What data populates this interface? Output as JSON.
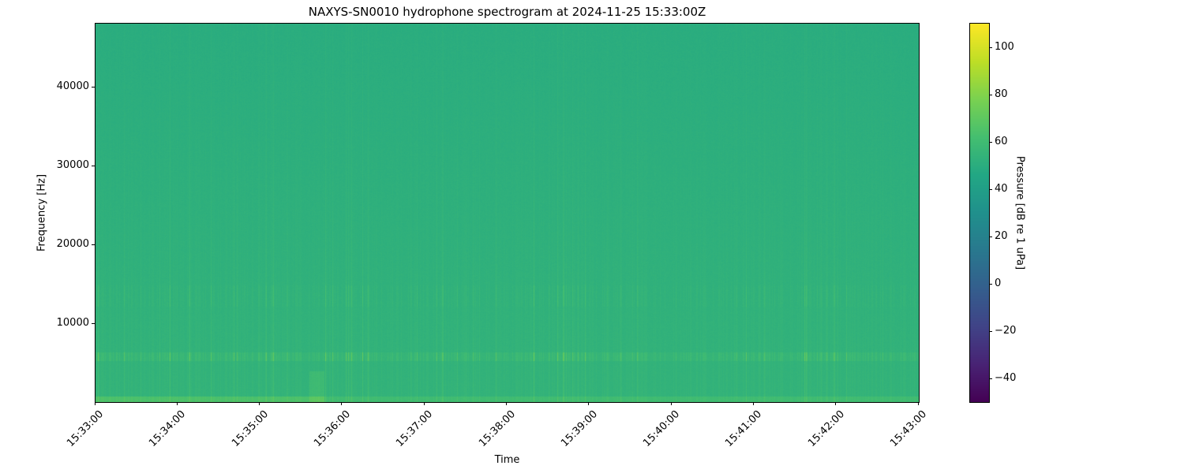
{
  "chart_data": {
    "type": "heatmap",
    "title": "NAXYS-SN0010 hydrophone spectrogram at 2024-11-25 15:33:00Z",
    "xlabel": "Time",
    "ylabel": "Frequency [Hz]",
    "xlim": [
      "15:33:00",
      "15:43:00"
    ],
    "ylim": [
      0,
      48000
    ],
    "xticks": [
      "15:33:00",
      "15:34:00",
      "15:35:00",
      "15:36:00",
      "15:37:00",
      "15:38:00",
      "15:39:00",
      "15:40:00",
      "15:41:00",
      "15:42:00",
      "15:43:00"
    ],
    "yticks": [
      10000,
      20000,
      30000,
      40000
    ],
    "colormap": "viridis",
    "colorbar": {
      "label": "Pressure [dB re 1 uPa]",
      "range": [
        -50,
        110
      ],
      "ticks": [
        -40,
        -20,
        0,
        20,
        40,
        60,
        80,
        100
      ]
    },
    "background_level_db": 50,
    "bands_hz": [
      5800,
      13500
    ],
    "grid": false
  }
}
